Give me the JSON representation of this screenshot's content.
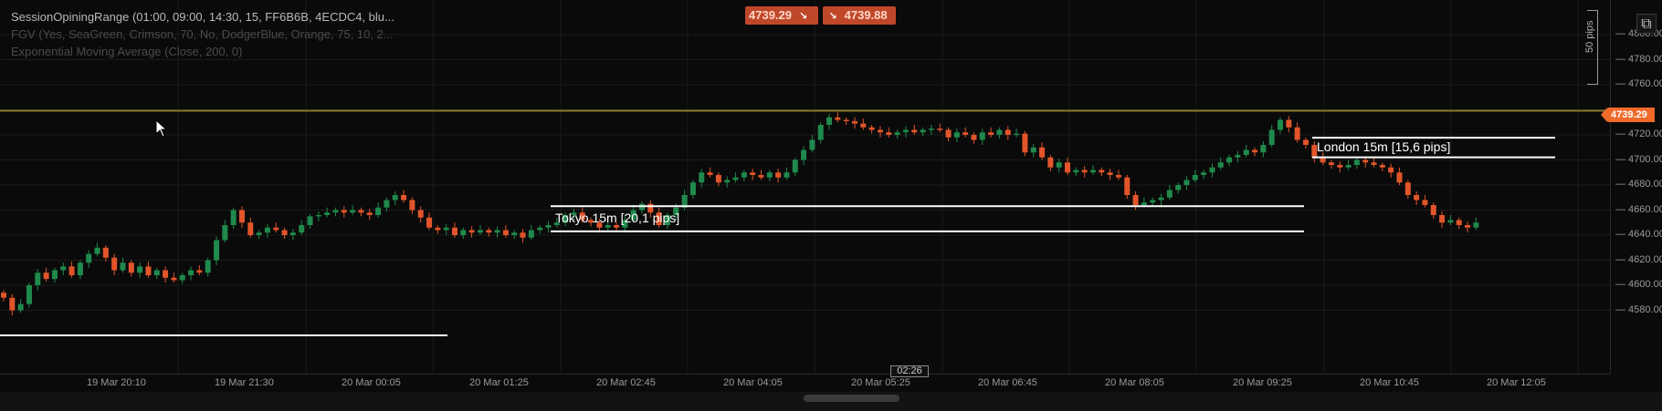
{
  "indicators": [
    "SessionOpiningRange (01:00, 09:00, 14:30, 15, FF6B6B, 4ECDC4, blu...",
    "FGV (Yes, SeaGreen, Crimson, 70, No, DodgerBlue, Orange, 75, 10, 2...",
    "Exponential Moving Average (Close, 200, 0)"
  ],
  "quote": {
    "sell_price": "4739.29",
    "buy_price": "4739.88",
    "sell_icon": "arrow-down-right-icon",
    "buy_icon": "arrow-down-right-icon"
  },
  "current_price_label": "4739.29",
  "price_ticks": [
    "4800.00",
    "4780.00",
    "4760.00",
    "4720.00",
    "4700.00",
    "4680.00",
    "4660.00",
    "4640.00",
    "4620.00",
    "4600.00",
    "4580.00"
  ],
  "time_ticks": [
    "19 Mar 20:10",
    "19 Mar 21:30",
    "20 Mar 00:05",
    "20 Mar 01:25",
    "20 Mar 02:45",
    "20 Mar 04:05",
    "20 Mar 05:25",
    "20 Mar 06:45",
    "20 Mar 08:05",
    "20 Mar 09:25",
    "20 Mar 10:45",
    "20 Mar 12:05"
  ],
  "crosshair_time": "02:26",
  "pips_ruler_label": "50 pips",
  "sessions": [
    {
      "name": "Tokyo",
      "label": "Tokyo  15m  [20,1 pips]",
      "high": 4663.1,
      "low": 4643.0
    },
    {
      "name": "London",
      "label": "London  15m  [15,6 pips]",
      "high": 4717.7,
      "low": 4702.1
    }
  ],
  "colors": {
    "background": "#0a0a0a",
    "bull": "#1f8a4c",
    "bear": "#e2552b",
    "current_price_line": "#8a7a2a",
    "range_line": "#ffffff",
    "price_badge": "#f06a2a"
  },
  "chart_data": {
    "type": "candlestick",
    "instrument_timeframe": "15m",
    "ylim": [
      4570,
      4810
    ],
    "current_price": 4739.29,
    "closes": [
      4590,
      4580,
      4585,
      4600,
      4610,
      4605,
      4612,
      4615,
      4608,
      4618,
      4625,
      4630,
      4622,
      4612,
      4618,
      4610,
      4615,
      4608,
      4612,
      4606,
      4604,
      4608,
      4612,
      4610,
      4620,
      4636,
      4648,
      4660,
      4650,
      4640,
      4642,
      4646,
      4644,
      4640,
      4642,
      4648,
      4655,
      4656,
      4658,
      4660,
      4658,
      4660,
      4658,
      4656,
      4662,
      4668,
      4672,
      4668,
      4660,
      4654,
      4646,
      4644,
      4646,
      4640,
      4644,
      4642,
      4644,
      4642,
      4644,
      4640,
      4642,
      4638,
      4644,
      4646,
      4648,
      4650,
      4656,
      4658,
      4652,
      4650,
      4646,
      4648,
      4646,
      4652,
      4660,
      4665,
      4658,
      4648,
      4656,
      4662,
      4672,
      4682,
      4690,
      4688,
      4682,
      4684,
      4686,
      4690,
      4688,
      4686,
      4690,
      4686,
      4690,
      4700,
      4708,
      4716,
      4728,
      4734,
      4732,
      4731,
      4729,
      4726,
      4724,
      4722,
      4720,
      4722,
      4724,
      4722,
      4724,
      4725,
      4724,
      4718,
      4722,
      4720,
      4716,
      4722,
      4720,
      4724,
      4720,
      4721,
      4706,
      4710,
      4702,
      4694,
      4698,
      4690,
      4692,
      4690,
      4692,
      4690,
      4688,
      4686,
      4672,
      4664,
      4666,
      4668,
      4670,
      4676,
      4680,
      4684,
      4688,
      4690,
      4694,
      4698,
      4702,
      4704,
      4708,
      4706,
      4712,
      4724,
      4732,
      4726,
      4716,
      4712,
      4702,
      4698,
      4696,
      4694,
      4696,
      4700,
      4698,
      4696,
      4694,
      4690,
      4682,
      4672,
      4668,
      4664,
      4656,
      4650,
      4652,
      4648,
      4646,
      4650
    ],
    "xlabel": "",
    "ylabel": ""
  }
}
